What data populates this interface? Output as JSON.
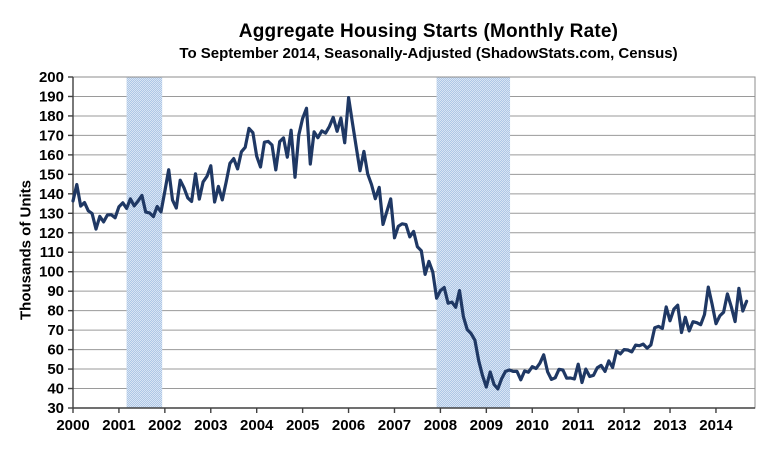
{
  "chart_data": {
    "type": "line",
    "title": "Aggregate Housing Starts (Monthly Rate)",
    "subtitle": "To September 2014, Seasonally-Adjusted (ShadowStats.com, Census)",
    "ylabel": "Thousands of Units",
    "ylim": [
      30,
      200
    ],
    "ytick_step": 10,
    "y_ticks": [
      200,
      190,
      180,
      170,
      160,
      150,
      140,
      130,
      120,
      110,
      100,
      90,
      80,
      70,
      60,
      50,
      40,
      30
    ],
    "x_ticks": [
      "2000",
      "2001",
      "2002",
      "2003",
      "2004",
      "2005",
      "2006",
      "2007",
      "2008",
      "2009",
      "2010",
      "2011",
      "2012",
      "2013",
      "2014"
    ],
    "x_axis": {
      "start": "2000-01",
      "end": "2014-09",
      "frequency": "monthly",
      "domain_months": 178.2,
      "months_per_tick": 12
    },
    "grid": "horizontal",
    "legend": "none",
    "shaded_bands": [
      {
        "from_month": 14,
        "to_month": 23.3
      },
      {
        "from_month": 95,
        "to_month": 114.2
      }
    ],
    "values": [
      136.3,
      144.8,
      133.7,
      135.5,
      131.3,
      129.9,
      121.9,
      128.4,
      125.6,
      129.1,
      129.3,
      127.7,
      133.3,
      135.4,
      132.5,
      137.4,
      133.8,
      136.3,
      139.2,
      130.6,
      130.2,
      128.3,
      133.5,
      130.7,
      141.5,
      152.4,
      136.8,
      132.7,
      147.0,
      143.1,
      137.9,
      136.1,
      150.3,
      137.3,
      146.1,
      149.0,
      154.4,
      135.8,
      143.8,
      136.9,
      145.9,
      155.6,
      158.1,
      152.8,
      161.6,
      163.9,
      173.6,
      171.4,
      159.3,
      153.8,
      166.5,
      166.9,
      165.1,
      152.3,
      166.8,
      168.7,
      158.8,
      172.7,
      148.5,
      170.2,
      178.7,
      183.9,
      155.3,
      171.8,
      168.8,
      172.3,
      171.2,
      174.6,
      179.3,
      172.1,
      178.9,
      166.2,
      189.4,
      176.6,
      164.1,
      151.8,
      161.8,
      150.2,
      144.8,
      137.5,
      143.3,
      124.3,
      130.8,
      137.4,
      117.4,
      123.3,
      124.6,
      124.2,
      117.9,
      120.7,
      112.8,
      110.8,
      98.6,
      105.3,
      99.8,
      86.4,
      90.3,
      91.9,
      83.8,
      84.4,
      81.7,
      90.3,
      76.9,
      70.3,
      68.3,
      64.8,
      54.3,
      46.7,
      40.8,
      48.5,
      42.1,
      39.8,
      45.0,
      48.8,
      49.5,
      48.8,
      48.8,
      44.5,
      49.0,
      48.4,
      51.2,
      50.3,
      53.0,
      57.3,
      48.6,
      44.7,
      45.5,
      49.9,
      49.5,
      45.3,
      45.4,
      44.9,
      52.5,
      43.1,
      50.0,
      46.2,
      46.8,
      50.7,
      51.9,
      48.8,
      54.2,
      50.8,
      59.3,
      57.8,
      60.0,
      59.8,
      58.8,
      62.3,
      62.0,
      62.8,
      60.7,
      62.4,
      71.2,
      71.9,
      70.9,
      81.9,
      74.8,
      80.8,
      82.8,
      68.8,
      76.6,
      69.6,
      74.3,
      73.8,
      72.8,
      78.0,
      92.1,
      83.3,
      73.3,
      77.3,
      79.2,
      88.6,
      82.0,
      74.4,
      91.5,
      79.8,
      84.8
    ],
    "colors": {
      "line": "#1F3864",
      "band_base": "#AEC7E6",
      "band_dot": "#D9E5F4",
      "grid": "#9A9A9A",
      "axis": "#404040",
      "border": "#8C8C8C",
      "text": "#000000",
      "background": "#FFFFFF"
    }
  }
}
